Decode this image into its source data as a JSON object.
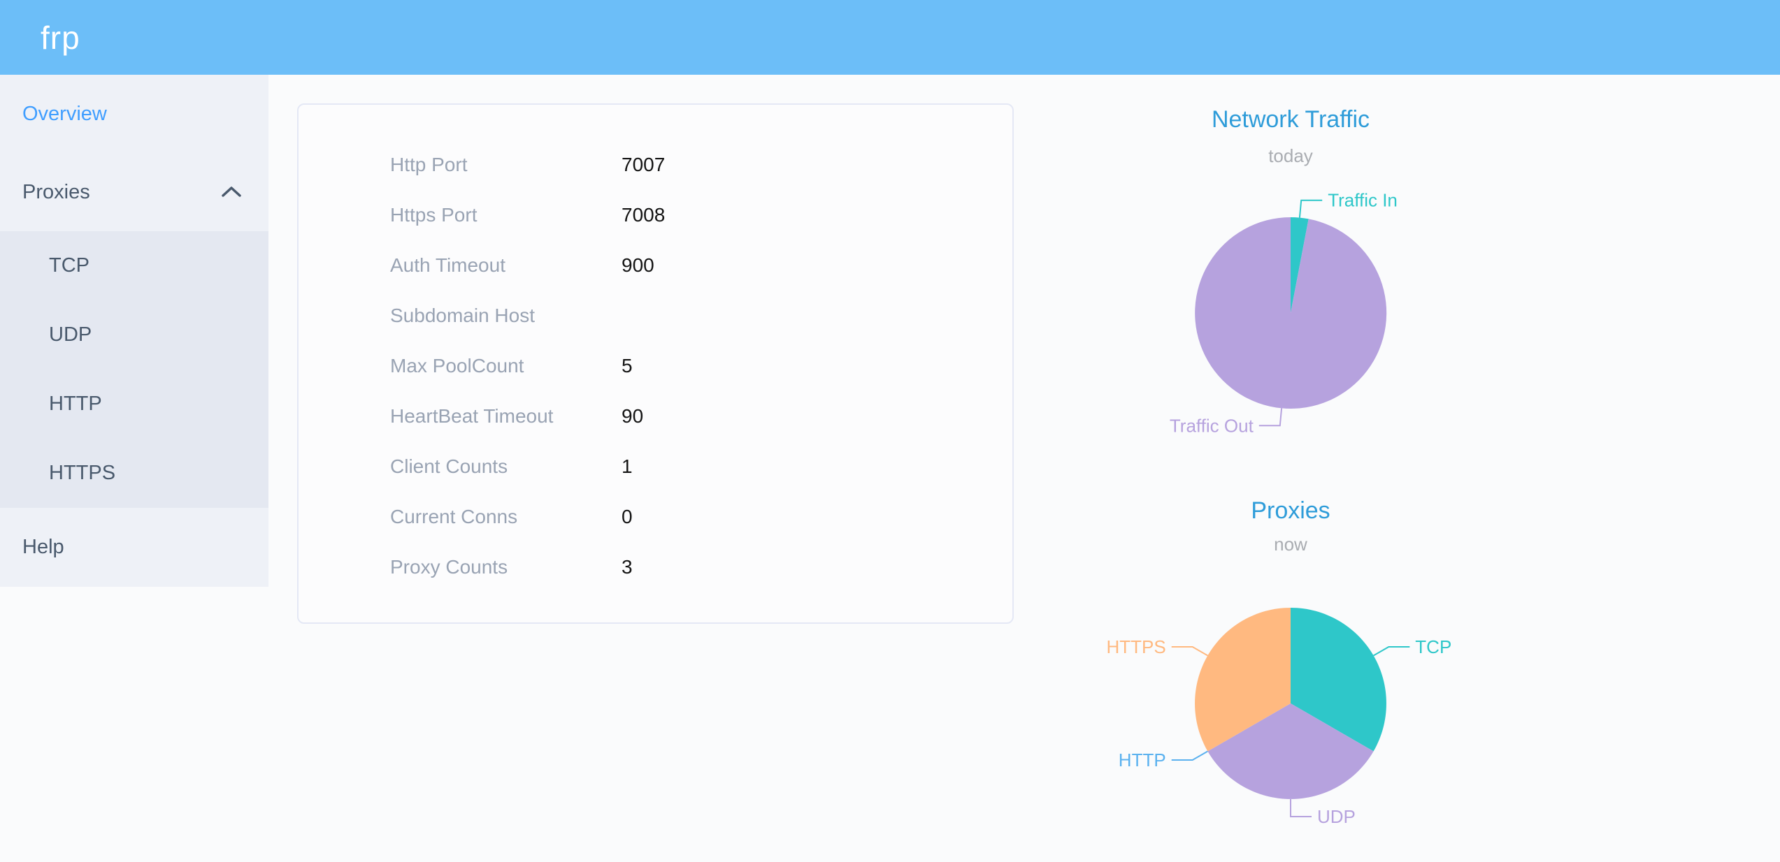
{
  "app": {
    "logo_text": "frp"
  },
  "sidebar": {
    "items": [
      {
        "label": "Overview",
        "active": true
      },
      {
        "label": "Proxies",
        "expanded": true,
        "children": [
          "TCP",
          "UDP",
          "HTTP",
          "HTTPS"
        ]
      },
      {
        "label": "Help",
        "active": false
      }
    ]
  },
  "icons": {
    "proxies_expand": "chevron-up"
  },
  "server_info": {
    "rows": [
      {
        "label": "Http Port",
        "value": "7007"
      },
      {
        "label": "Https Port",
        "value": "7008"
      },
      {
        "label": "Auth Timeout",
        "value": "900"
      },
      {
        "label": "Subdomain Host",
        "value": ""
      },
      {
        "label": "Max PoolCount",
        "value": "5"
      },
      {
        "label": "HeartBeat Timeout",
        "value": "90"
      },
      {
        "label": "Client Counts",
        "value": "1"
      },
      {
        "label": "Current Conns",
        "value": "0"
      },
      {
        "label": "Proxy Counts",
        "value": "3"
      }
    ]
  },
  "chart_data": [
    {
      "type": "pie",
      "title": "Network Traffic",
      "subtitle": "today",
      "legend_position": "none",
      "labels": "outside-connector",
      "values_are_estimated_percent": true,
      "series": [
        {
          "label": "Traffic In",
          "value": 3,
          "color": "#2ec7c9"
        },
        {
          "label": "Traffic Out",
          "value": 97,
          "color": "#b6a2de"
        }
      ]
    },
    {
      "type": "pie",
      "title": "Proxies",
      "subtitle": "now",
      "legend_position": "none",
      "labels": "outside-connector",
      "values_are_counts": true,
      "series": [
        {
          "label": "TCP",
          "value": 1,
          "color": "#2ec7c9"
        },
        {
          "label": "UDP",
          "value": 1,
          "color": "#b6a2de"
        },
        {
          "label": "HTTP",
          "value": 0,
          "color": "#5ab1ef"
        },
        {
          "label": "HTTPS",
          "value": 1,
          "color": "#ffb980"
        }
      ]
    }
  ],
  "colors": {
    "header_background": "#6cbef8",
    "active_menu_item": "#409eff",
    "chart_title_blue": "#2e9cd9",
    "palette_teal": "#2ec7c9",
    "palette_purple": "#b6a2de",
    "palette_blue": "#5ab1ef",
    "palette_orange": "#ffb980"
  }
}
